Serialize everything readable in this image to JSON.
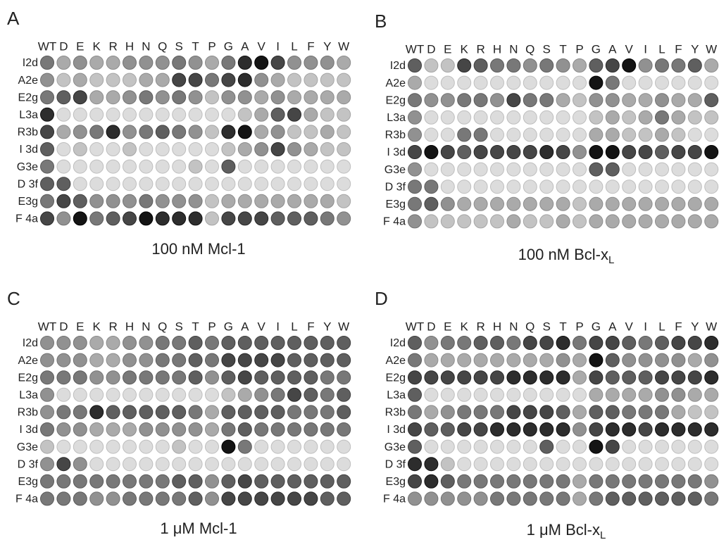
{
  "columns": [
    "WT",
    "D",
    "E",
    "K",
    "R",
    "H",
    "N",
    "Q",
    "S",
    "T",
    "P",
    "G",
    "A",
    "V",
    "I",
    "L",
    "F",
    "Y",
    "W"
  ],
  "rows": [
    "I2d",
    "A2e",
    "E2g",
    "L3a",
    "R3b",
    "I 3d",
    "G3e",
    "D 3f",
    "E3g",
    "F 4a"
  ],
  "panels": [
    {
      "letter": "A",
      "caption": {
        "text": "100 nM Mcl-1"
      },
      "spots": [
        [
          5,
          3,
          4,
          3,
          3,
          4,
          4,
          4,
          5,
          4,
          3,
          5,
          8,
          9,
          7,
          4,
          4,
          4,
          3
        ],
        [
          4,
          2,
          3,
          2,
          2,
          2,
          3,
          3,
          7,
          7,
          5,
          7,
          8,
          4,
          3,
          2,
          2,
          2,
          2
        ],
        [
          5,
          6,
          7,
          3,
          3,
          4,
          5,
          4,
          5,
          4,
          2,
          4,
          4,
          3,
          4,
          3,
          3,
          3,
          3
        ],
        [
          8,
          1,
          1,
          1,
          1,
          1,
          1,
          1,
          1,
          1,
          1,
          1,
          2,
          3,
          6,
          7,
          3,
          2,
          2
        ],
        [
          7,
          3,
          4,
          5,
          8,
          4,
          5,
          6,
          5,
          4,
          2,
          8,
          9,
          3,
          4,
          2,
          2,
          3,
          2
        ],
        [
          6,
          1,
          2,
          1,
          1,
          2,
          1,
          1,
          1,
          1,
          1,
          2,
          3,
          4,
          7,
          4,
          3,
          2,
          2
        ],
        [
          5,
          1,
          1,
          1,
          1,
          1,
          1,
          1,
          1,
          2,
          1,
          6,
          1,
          1,
          1,
          1,
          1,
          1,
          1
        ],
        [
          6,
          6,
          1,
          1,
          1,
          1,
          1,
          1,
          1,
          1,
          1,
          1,
          1,
          1,
          1,
          1,
          1,
          1,
          1
        ],
        [
          5,
          7,
          6,
          4,
          4,
          4,
          5,
          4,
          4,
          4,
          2,
          3,
          3,
          3,
          3,
          3,
          3,
          3,
          2
        ],
        [
          7,
          4,
          9,
          5,
          6,
          7,
          9,
          8,
          8,
          8,
          2,
          7,
          7,
          7,
          6,
          6,
          6,
          5,
          4
        ]
      ]
    },
    {
      "letter": "B",
      "caption": {
        "text": "100 nM Bcl-x",
        "sub": "L"
      },
      "spots": [
        [
          6,
          2,
          2,
          7,
          6,
          5,
          5,
          4,
          5,
          4,
          3,
          6,
          7,
          9,
          4,
          5,
          5,
          6,
          3
        ],
        [
          3,
          1,
          1,
          1,
          1,
          1,
          1,
          1,
          1,
          1,
          1,
          9,
          5,
          1,
          1,
          1,
          1,
          1,
          1
        ],
        [
          5,
          4,
          4,
          5,
          5,
          4,
          7,
          5,
          5,
          3,
          2,
          4,
          4,
          3,
          3,
          4,
          3,
          3,
          6
        ],
        [
          4,
          1,
          1,
          1,
          1,
          1,
          1,
          1,
          1,
          1,
          1,
          2,
          3,
          2,
          3,
          5,
          3,
          2,
          2
        ],
        [
          4,
          1,
          1,
          5,
          5,
          1,
          1,
          1,
          1,
          1,
          1,
          3,
          3,
          2,
          2,
          3,
          2,
          1,
          1
        ],
        [
          7,
          9,
          7,
          6,
          7,
          7,
          7,
          7,
          8,
          7,
          4,
          9,
          9,
          7,
          7,
          6,
          7,
          7,
          9
        ],
        [
          4,
          1,
          1,
          1,
          1,
          1,
          1,
          1,
          1,
          1,
          1,
          6,
          6,
          1,
          1,
          1,
          1,
          1,
          1
        ],
        [
          5,
          5,
          1,
          1,
          1,
          1,
          1,
          1,
          1,
          1,
          1,
          1,
          1,
          1,
          1,
          1,
          1,
          1,
          1
        ],
        [
          5,
          6,
          4,
          3,
          3,
          3,
          3,
          3,
          3,
          3,
          2,
          3,
          3,
          3,
          3,
          3,
          3,
          3,
          3
        ],
        [
          4,
          2,
          2,
          2,
          2,
          2,
          3,
          2,
          2,
          3,
          2,
          3,
          3,
          3,
          3,
          3,
          3,
          3,
          3
        ]
      ]
    },
    {
      "letter": "C",
      "caption": {
        "text": "1 μM Mcl-1"
      },
      "spots": [
        [
          4,
          4,
          4,
          3,
          3,
          4,
          4,
          5,
          5,
          6,
          5,
          6,
          6,
          6,
          6,
          6,
          6,
          6,
          6
        ],
        [
          4,
          4,
          4,
          3,
          3,
          4,
          4,
          5,
          5,
          6,
          5,
          7,
          7,
          7,
          7,
          6,
          6,
          6,
          6
        ],
        [
          5,
          5,
          5,
          4,
          4,
          5,
          5,
          5,
          5,
          6,
          4,
          6,
          7,
          6,
          6,
          6,
          6,
          5,
          5
        ],
        [
          4,
          1,
          1,
          1,
          1,
          1,
          1,
          1,
          1,
          1,
          1,
          2,
          3,
          4,
          5,
          7,
          6,
          5,
          6
        ],
        [
          4,
          5,
          5,
          8,
          6,
          6,
          6,
          6,
          6,
          5,
          3,
          6,
          6,
          6,
          6,
          5,
          5,
          5,
          6
        ],
        [
          5,
          4,
          4,
          3,
          3,
          3,
          4,
          4,
          4,
          4,
          3,
          5,
          6,
          5,
          5,
          5,
          5,
          5,
          5
        ],
        [
          2,
          1,
          1,
          1,
          1,
          1,
          1,
          1,
          2,
          1,
          1,
          9,
          5,
          1,
          1,
          1,
          1,
          1,
          1
        ],
        [
          4,
          7,
          4,
          1,
          1,
          1,
          1,
          1,
          1,
          1,
          1,
          1,
          1,
          1,
          1,
          1,
          1,
          1,
          1
        ],
        [
          5,
          5,
          5,
          5,
          5,
          5,
          5,
          5,
          6,
          6,
          4,
          6,
          7,
          6,
          6,
          6,
          6,
          6,
          6
        ],
        [
          5,
          5,
          5,
          4,
          4,
          5,
          5,
          5,
          5,
          6,
          4,
          7,
          7,
          7,
          7,
          7,
          7,
          6,
          6
        ]
      ]
    },
    {
      "letter": "D",
      "caption": {
        "text": "1 μM Bcl-x",
        "sub": "L"
      },
      "spots": [
        [
          6,
          4,
          5,
          5,
          6,
          6,
          5,
          7,
          7,
          8,
          5,
          7,
          7,
          6,
          5,
          6,
          7,
          7,
          8
        ],
        [
          5,
          3,
          3,
          3,
          3,
          3,
          3,
          3,
          3,
          4,
          3,
          9,
          6,
          4,
          4,
          4,
          4,
          3,
          4
        ],
        [
          7,
          7,
          7,
          7,
          7,
          7,
          8,
          8,
          8,
          8,
          3,
          7,
          6,
          6,
          6,
          7,
          7,
          7,
          8
        ],
        [
          6,
          1,
          1,
          1,
          1,
          1,
          1,
          1,
          1,
          1,
          1,
          3,
          3,
          3,
          3,
          4,
          4,
          3,
          3
        ],
        [
          5,
          3,
          4,
          5,
          5,
          5,
          7,
          7,
          7,
          6,
          3,
          6,
          6,
          5,
          5,
          5,
          3,
          2,
          2
        ],
        [
          7,
          6,
          6,
          7,
          7,
          8,
          8,
          8,
          8,
          8,
          4,
          7,
          8,
          8,
          7,
          8,
          8,
          8,
          8
        ],
        [
          6,
          1,
          1,
          1,
          1,
          1,
          1,
          1,
          6,
          1,
          1,
          9,
          7,
          1,
          1,
          1,
          1,
          1,
          1
        ],
        [
          8,
          8,
          2,
          1,
          1,
          1,
          1,
          1,
          1,
          1,
          1,
          1,
          1,
          1,
          1,
          1,
          1,
          1,
          1
        ],
        [
          7,
          8,
          6,
          5,
          5,
          5,
          5,
          5,
          5,
          5,
          3,
          5,
          5,
          5,
          5,
          5,
          5,
          5,
          4
        ],
        [
          4,
          4,
          4,
          4,
          4,
          5,
          5,
          5,
          5,
          5,
          3,
          5,
          6,
          6,
          6,
          6,
          6,
          6,
          5
        ]
      ]
    }
  ]
}
